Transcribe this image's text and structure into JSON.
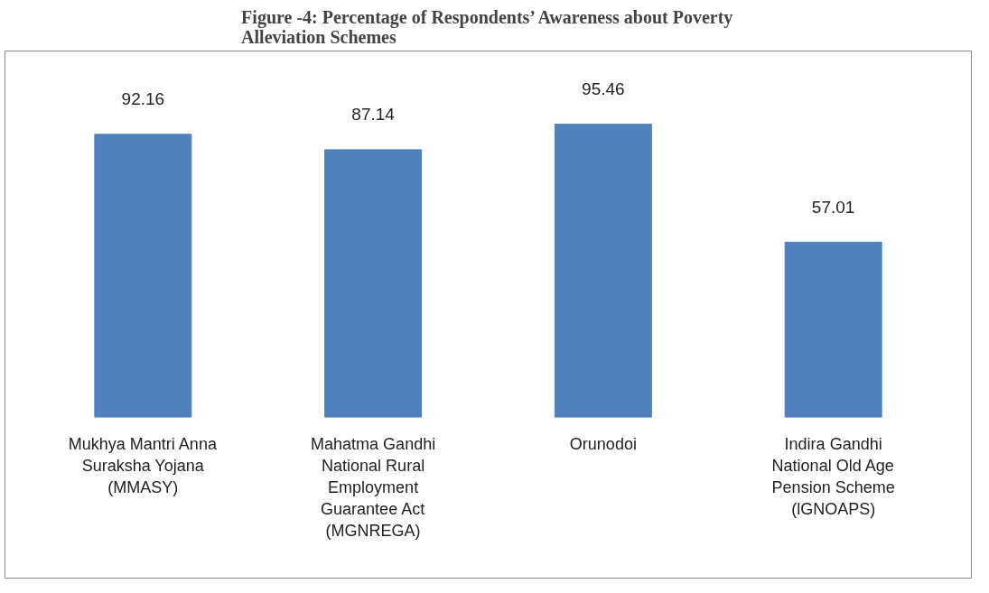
{
  "chart_data": {
    "type": "bar",
    "title": "Figure -4: Percentage of Respondents’ Awareness about Poverty Alleviation Schemes",
    "categories": [
      "Mukhya Mantri Anna Suraksha Yojana (MMASY)",
      "Mahatma Gandhi National Rural Employment Guarantee Act (MGNREGA)",
      "Orunodoi",
      "Indira Gandhi National Old Age Pension Scheme (lGNOAPS)"
    ],
    "values": [
      92.16,
      87.14,
      95.46,
      57.01
    ],
    "color": "#4f81bd",
    "data_labels": true
  }
}
